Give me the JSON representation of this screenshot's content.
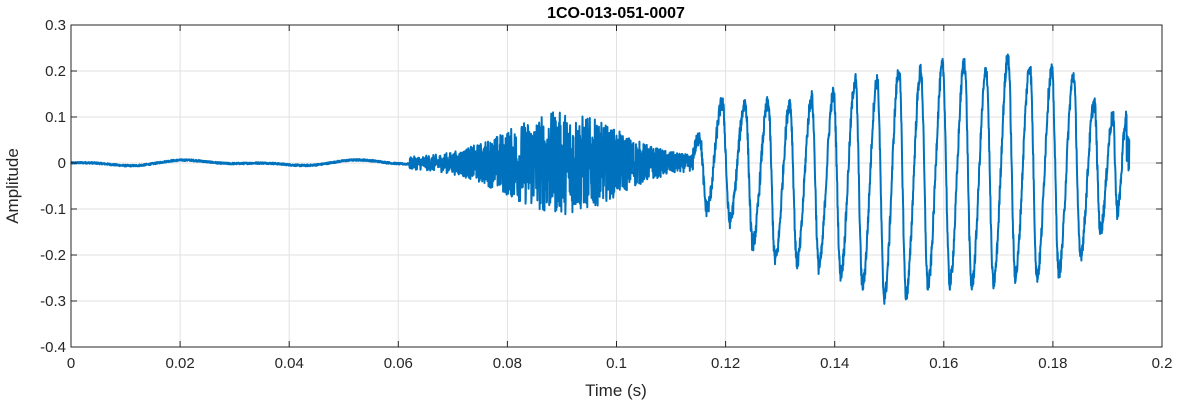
{
  "chart_data": {
    "type": "line",
    "title": "1CO-013-051-0007",
    "xlabel": "Time (s)",
    "ylabel": "Amplitude",
    "xlim": [
      0,
      0.2
    ],
    "ylim": [
      -0.4,
      0.3
    ],
    "x_ticks": [
      0,
      0.02,
      0.04,
      0.06,
      0.08,
      0.1,
      0.12,
      0.14,
      0.16,
      0.18,
      0.2
    ],
    "x_tick_labels": [
      "0",
      "0.02",
      "0.04",
      "0.06",
      "0.08",
      "0.1",
      "0.12",
      "0.14",
      "0.16",
      "0.18",
      "0.2"
    ],
    "y_ticks": [
      -0.4,
      -0.3,
      -0.2,
      -0.1,
      0,
      0.1,
      0.2,
      0.3
    ],
    "y_tick_labels": [
      "-0.4",
      "-0.3",
      "-0.2",
      "-0.1",
      "0",
      "0.1",
      "0.2",
      "0.3"
    ],
    "grid": true,
    "series": [
      {
        "color": "#0072bd",
        "x_range": [
          0,
          0.194
        ],
        "peaks": [
          {
            "x": 0.1152,
            "max": 0.06,
            "min": -0.09
          },
          {
            "x": 0.1194,
            "max": 0.13,
            "min": -0.11
          },
          {
            "x": 0.1236,
            "max": 0.13,
            "min": -0.14
          },
          {
            "x": 0.1278,
            "max": 0.13,
            "min": -0.21
          },
          {
            "x": 0.1318,
            "max": 0.13,
            "min": -0.21
          },
          {
            "x": 0.1358,
            "max": 0.14,
            "min": -0.22
          },
          {
            "x": 0.1398,
            "max": 0.15,
            "min": -0.23
          },
          {
            "x": 0.1438,
            "max": 0.18,
            "min": -0.25
          },
          {
            "x": 0.1478,
            "max": 0.18,
            "min": -0.28
          },
          {
            "x": 0.1518,
            "max": 0.2,
            "min": -0.3
          },
          {
            "x": 0.1558,
            "max": 0.2,
            "min": -0.27
          },
          {
            "x": 0.1598,
            "max": 0.21,
            "min": -0.26
          },
          {
            "x": 0.1638,
            "max": 0.22,
            "min": -0.26
          },
          {
            "x": 0.1678,
            "max": 0.2,
            "min": -0.27
          },
          {
            "x": 0.1718,
            "max": 0.23,
            "min": -0.25
          },
          {
            "x": 0.1758,
            "max": 0.21,
            "min": -0.24
          },
          {
            "x": 0.1798,
            "max": 0.2,
            "min": -0.25
          },
          {
            "x": 0.1838,
            "max": 0.19,
            "min": -0.22
          },
          {
            "x": 0.1876,
            "max": 0.13,
            "min": -0.18
          },
          {
            "x": 0.191,
            "max": 0.1,
            "min": -0.11
          },
          {
            "x": 0.1935,
            "max": 0.1,
            "min": -0.1
          }
        ],
        "noisy_segment": {
          "x_start": 0.062,
          "x_end": 0.114,
          "peak_x": 0.09,
          "peak_amplitude": 0.1
        }
      }
    ]
  }
}
